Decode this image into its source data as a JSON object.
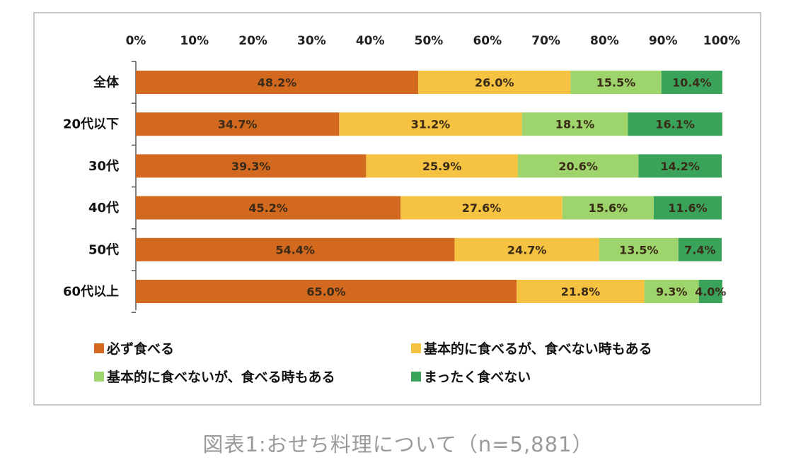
{
  "caption": "図表1:おせち料理について（n=5,881）",
  "chart_data": {
    "type": "bar",
    "orientation": "horizontal",
    "stacked": true,
    "percent_stacked": true,
    "xlim": [
      0,
      100
    ],
    "x_ticks": [
      "0%",
      "10%",
      "20%",
      "30%",
      "40%",
      "50%",
      "60%",
      "70%",
      "80%",
      "90%",
      "100%"
    ],
    "x_axis_position": "top",
    "legend_position": "bottom",
    "grid": false,
    "categories": [
      "全体",
      "20代以下",
      "30代",
      "40代",
      "50代",
      "60代以上"
    ],
    "series": [
      {
        "name": "必ず食べる",
        "color": "#d2691e",
        "values": [
          48.2,
          34.7,
          39.3,
          45.2,
          54.4,
          65.0
        ],
        "labels": [
          "48.2%",
          "34.7%",
          "39.3%",
          "45.2%",
          "54.4%",
          "65.0%"
        ]
      },
      {
        "name": "基本的に食べるが、食べない時もある",
        "color": "#f5c242",
        "values": [
          26.0,
          31.2,
          25.9,
          27.6,
          24.7,
          21.8
        ],
        "labels": [
          "26.0%",
          "31.2%",
          "25.9%",
          "27.6%",
          "24.7%",
          "21.8%"
        ]
      },
      {
        "name": "基本的に食べないが、食べる時もある",
        "color": "#9dd46b",
        "values": [
          15.5,
          18.1,
          20.6,
          15.6,
          13.5,
          9.3
        ],
        "labels": [
          "15.5%",
          "18.1%",
          "20.6%",
          "15.6%",
          "13.5%",
          "9.3%"
        ]
      },
      {
        "name": "まったく食べない",
        "color": "#3aa35a",
        "values": [
          10.4,
          16.1,
          14.2,
          11.6,
          7.4,
          4.0
        ],
        "labels": [
          "10.4%",
          "16.1%",
          "14.2%",
          "11.6%",
          "7.4%",
          "4.0%"
        ]
      }
    ]
  }
}
